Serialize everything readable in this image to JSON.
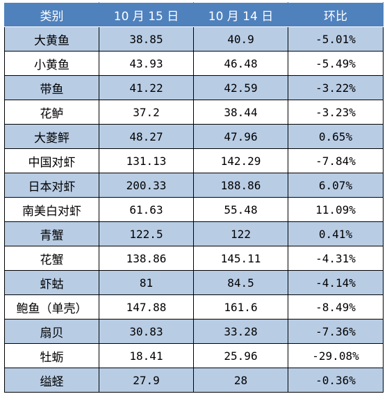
{
  "colors": {
    "header_bg": "#4f81bd",
    "row_band": "#b8cce4",
    "row_plain": "#ffffff"
  },
  "headers": [
    "类别",
    "10 月 15 日",
    "10 月 14 日",
    "环比"
  ],
  "rows": [
    [
      "大黄鱼",
      "38.85",
      "40.9",
      "-5.01%"
    ],
    [
      "小黄鱼",
      "43.93",
      "46.48",
      "-5.49%"
    ],
    [
      "带鱼",
      "41.22",
      "42.59",
      "-3.22%"
    ],
    [
      "花鲈",
      "37.2",
      "38.44",
      "-3.23%"
    ],
    [
      "大菱鲆",
      "48.27",
      "47.96",
      "0.65%"
    ],
    [
      "中国对虾",
      "131.13",
      "142.29",
      "-7.84%"
    ],
    [
      "日本对虾",
      "200.33",
      "188.86",
      "6.07%"
    ],
    [
      "南美白对虾",
      "61.63",
      "55.48",
      "11.09%"
    ],
    [
      "青蟹",
      "122.5",
      "122",
      "0.41%"
    ],
    [
      "花蟹",
      "138.86",
      "145.11",
      "-4.31%"
    ],
    [
      "虾蛄",
      "81",
      "84.5",
      "-4.14%"
    ],
    [
      "鲍鱼（单壳）",
      "147.88",
      "161.6",
      "-8.49%"
    ],
    [
      "扇贝",
      "30.83",
      "33.28",
      "-7.36%"
    ],
    [
      "牡蛎",
      "18.41",
      "25.96",
      "-29.08%"
    ],
    [
      "缢蛏",
      "27.9",
      "28",
      "-0.36%"
    ]
  ]
}
